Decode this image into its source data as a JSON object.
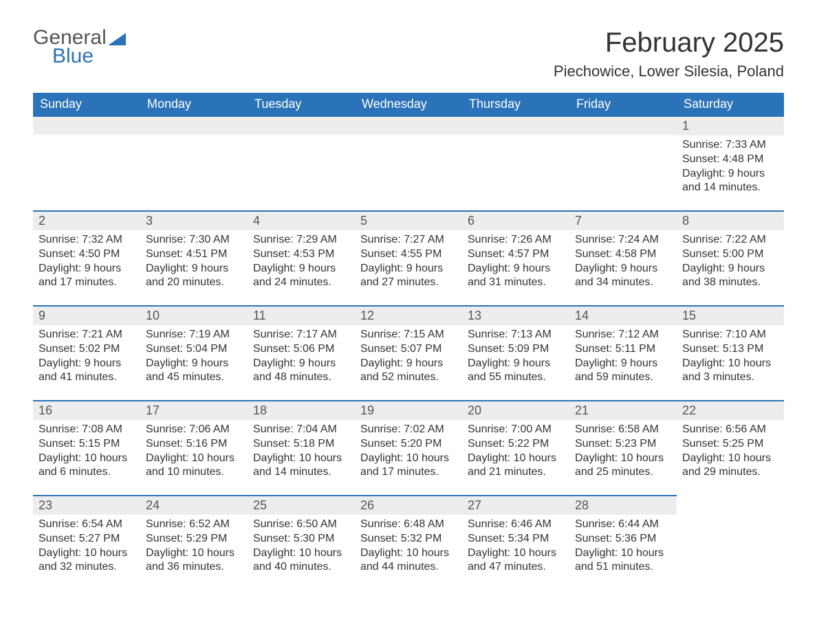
{
  "brand": {
    "word1": "General",
    "word2": "Blue"
  },
  "colors": {
    "header_bg": "#2b73b8",
    "header_text": "#ffffff",
    "day_header_bg": "#ededed",
    "day_header_border": "#2b73b8",
    "body_text": "#333333",
    "background": "#ffffff"
  },
  "title": "February 2025",
  "location": "Piechowice, Lower Silesia, Poland",
  "weekdays": [
    "Sunday",
    "Monday",
    "Tuesday",
    "Wednesday",
    "Thursday",
    "Friday",
    "Saturday"
  ],
  "weeks": [
    [
      null,
      null,
      null,
      null,
      null,
      null,
      {
        "n": "1",
        "sr": "Sunrise: 7:33 AM",
        "ss": "Sunset: 4:48 PM",
        "d1": "Daylight: 9 hours",
        "d2": "and 14 minutes."
      }
    ],
    [
      {
        "n": "2",
        "sr": "Sunrise: 7:32 AM",
        "ss": "Sunset: 4:50 PM",
        "d1": "Daylight: 9 hours",
        "d2": "and 17 minutes."
      },
      {
        "n": "3",
        "sr": "Sunrise: 7:30 AM",
        "ss": "Sunset: 4:51 PM",
        "d1": "Daylight: 9 hours",
        "d2": "and 20 minutes."
      },
      {
        "n": "4",
        "sr": "Sunrise: 7:29 AM",
        "ss": "Sunset: 4:53 PM",
        "d1": "Daylight: 9 hours",
        "d2": "and 24 minutes."
      },
      {
        "n": "5",
        "sr": "Sunrise: 7:27 AM",
        "ss": "Sunset: 4:55 PM",
        "d1": "Daylight: 9 hours",
        "d2": "and 27 minutes."
      },
      {
        "n": "6",
        "sr": "Sunrise: 7:26 AM",
        "ss": "Sunset: 4:57 PM",
        "d1": "Daylight: 9 hours",
        "d2": "and 31 minutes."
      },
      {
        "n": "7",
        "sr": "Sunrise: 7:24 AM",
        "ss": "Sunset: 4:58 PM",
        "d1": "Daylight: 9 hours",
        "d2": "and 34 minutes."
      },
      {
        "n": "8",
        "sr": "Sunrise: 7:22 AM",
        "ss": "Sunset: 5:00 PM",
        "d1": "Daylight: 9 hours",
        "d2": "and 38 minutes."
      }
    ],
    [
      {
        "n": "9",
        "sr": "Sunrise: 7:21 AM",
        "ss": "Sunset: 5:02 PM",
        "d1": "Daylight: 9 hours",
        "d2": "and 41 minutes."
      },
      {
        "n": "10",
        "sr": "Sunrise: 7:19 AM",
        "ss": "Sunset: 5:04 PM",
        "d1": "Daylight: 9 hours",
        "d2": "and 45 minutes."
      },
      {
        "n": "11",
        "sr": "Sunrise: 7:17 AM",
        "ss": "Sunset: 5:06 PM",
        "d1": "Daylight: 9 hours",
        "d2": "and 48 minutes."
      },
      {
        "n": "12",
        "sr": "Sunrise: 7:15 AM",
        "ss": "Sunset: 5:07 PM",
        "d1": "Daylight: 9 hours",
        "d2": "and 52 minutes."
      },
      {
        "n": "13",
        "sr": "Sunrise: 7:13 AM",
        "ss": "Sunset: 5:09 PM",
        "d1": "Daylight: 9 hours",
        "d2": "and 55 minutes."
      },
      {
        "n": "14",
        "sr": "Sunrise: 7:12 AM",
        "ss": "Sunset: 5:11 PM",
        "d1": "Daylight: 9 hours",
        "d2": "and 59 minutes."
      },
      {
        "n": "15",
        "sr": "Sunrise: 7:10 AM",
        "ss": "Sunset: 5:13 PM",
        "d1": "Daylight: 10 hours",
        "d2": "and 3 minutes."
      }
    ],
    [
      {
        "n": "16",
        "sr": "Sunrise: 7:08 AM",
        "ss": "Sunset: 5:15 PM",
        "d1": "Daylight: 10 hours",
        "d2": "and 6 minutes."
      },
      {
        "n": "17",
        "sr": "Sunrise: 7:06 AM",
        "ss": "Sunset: 5:16 PM",
        "d1": "Daylight: 10 hours",
        "d2": "and 10 minutes."
      },
      {
        "n": "18",
        "sr": "Sunrise: 7:04 AM",
        "ss": "Sunset: 5:18 PM",
        "d1": "Daylight: 10 hours",
        "d2": "and 14 minutes."
      },
      {
        "n": "19",
        "sr": "Sunrise: 7:02 AM",
        "ss": "Sunset: 5:20 PM",
        "d1": "Daylight: 10 hours",
        "d2": "and 17 minutes."
      },
      {
        "n": "20",
        "sr": "Sunrise: 7:00 AM",
        "ss": "Sunset: 5:22 PM",
        "d1": "Daylight: 10 hours",
        "d2": "and 21 minutes."
      },
      {
        "n": "21",
        "sr": "Sunrise: 6:58 AM",
        "ss": "Sunset: 5:23 PM",
        "d1": "Daylight: 10 hours",
        "d2": "and 25 minutes."
      },
      {
        "n": "22",
        "sr": "Sunrise: 6:56 AM",
        "ss": "Sunset: 5:25 PM",
        "d1": "Daylight: 10 hours",
        "d2": "and 29 minutes."
      }
    ],
    [
      {
        "n": "23",
        "sr": "Sunrise: 6:54 AM",
        "ss": "Sunset: 5:27 PM",
        "d1": "Daylight: 10 hours",
        "d2": "and 32 minutes."
      },
      {
        "n": "24",
        "sr": "Sunrise: 6:52 AM",
        "ss": "Sunset: 5:29 PM",
        "d1": "Daylight: 10 hours",
        "d2": "and 36 minutes."
      },
      {
        "n": "25",
        "sr": "Sunrise: 6:50 AM",
        "ss": "Sunset: 5:30 PM",
        "d1": "Daylight: 10 hours",
        "d2": "and 40 minutes."
      },
      {
        "n": "26",
        "sr": "Sunrise: 6:48 AM",
        "ss": "Sunset: 5:32 PM",
        "d1": "Daylight: 10 hours",
        "d2": "and 44 minutes."
      },
      {
        "n": "27",
        "sr": "Sunrise: 6:46 AM",
        "ss": "Sunset: 5:34 PM",
        "d1": "Daylight: 10 hours",
        "d2": "and 47 minutes."
      },
      {
        "n": "28",
        "sr": "Sunrise: 6:44 AM",
        "ss": "Sunset: 5:36 PM",
        "d1": "Daylight: 10 hours",
        "d2": "and 51 minutes."
      },
      null
    ]
  ]
}
